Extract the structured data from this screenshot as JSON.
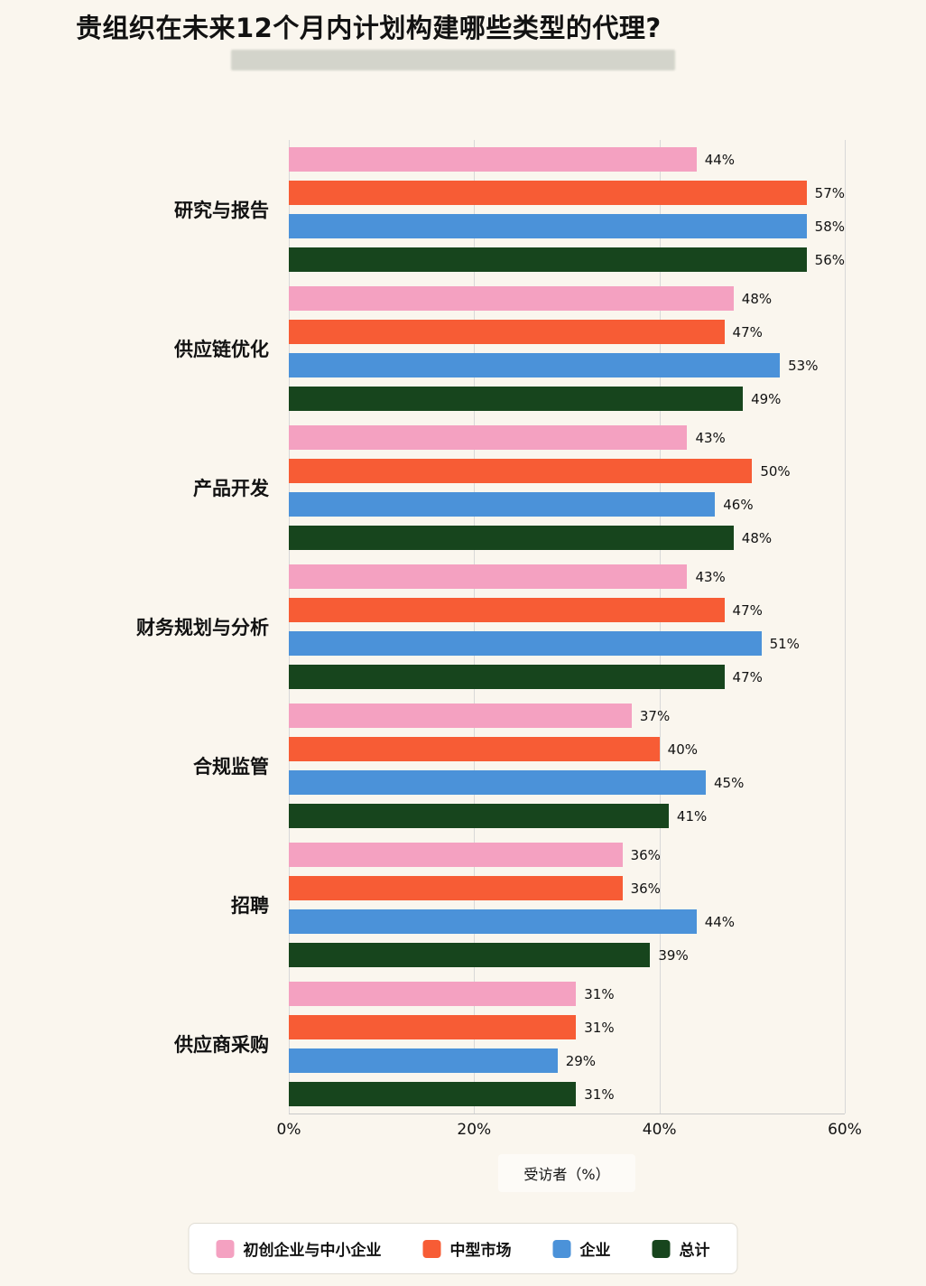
{
  "title": "贵组织在未来12个月内计划构建哪些类型的代理?",
  "chart_data": {
    "type": "bar",
    "orientation": "horizontal",
    "categories": [
      "研究与报告",
      "供应链优化",
      "产品开发",
      "财务规划与分析",
      "合规监管",
      "招聘",
      "供应商采购"
    ],
    "series": [
      {
        "name": "初创企业与中小企业",
        "color": "#F4A1C1",
        "values": [
          44,
          48,
          43,
          43,
          37,
          36,
          31
        ]
      },
      {
        "name": "中型市场",
        "color": "#F75C35",
        "values": [
          57,
          47,
          50,
          47,
          40,
          36,
          31
        ]
      },
      {
        "name": "企业",
        "color": "#4B92D9",
        "values": [
          58,
          53,
          46,
          51,
          45,
          44,
          29
        ]
      },
      {
        "name": "总计",
        "color": "#17451D",
        "values": [
          56,
          49,
          48,
          47,
          41,
          39,
          31
        ]
      }
    ],
    "xlabel": "受访者（%）",
    "xlim": [
      0,
      60
    ],
    "xticks": [
      "0%",
      "20%",
      "40%",
      "60%"
    ],
    "value_suffix": "%",
    "grid": true,
    "legend_position": "bottom"
  }
}
